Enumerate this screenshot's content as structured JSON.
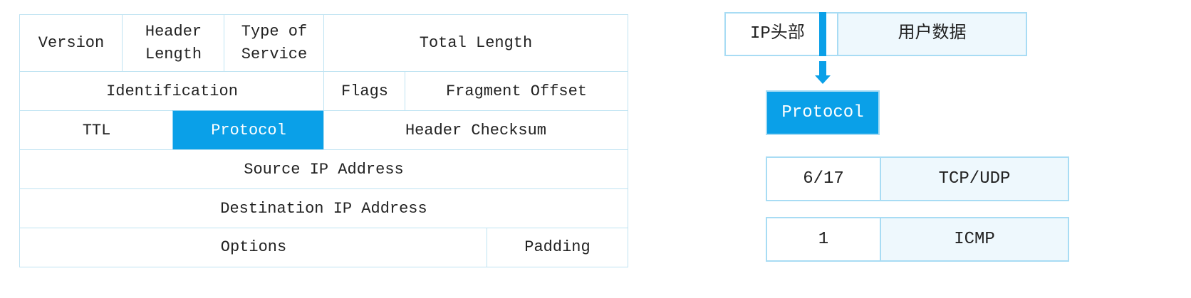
{
  "header_table": {
    "rows": [
      [
        "Version",
        "Header Length",
        "Type of Service",
        "Total Length"
      ],
      [
        "Identification",
        "Flags",
        "Fragment Offset"
      ],
      [
        "TTL",
        "Protocol",
        "Header Checksum"
      ],
      [
        "Source IP Address"
      ],
      [
        "Destination IP Address"
      ],
      [
        "Options",
        "Padding"
      ]
    ],
    "highlighted_field": "Protocol"
  },
  "packet": {
    "header_label": "IP头部",
    "data_label": "用户数据"
  },
  "protocol_box": "Protocol",
  "mapping": [
    {
      "value": "6/17",
      "protocol": "TCP/UDP"
    },
    {
      "value": "1",
      "protocol": "ICMP"
    }
  ],
  "colors": {
    "accent": "#0aa0e8",
    "border": "#bfe3f2",
    "light_fill": "#eef8fd"
  }
}
